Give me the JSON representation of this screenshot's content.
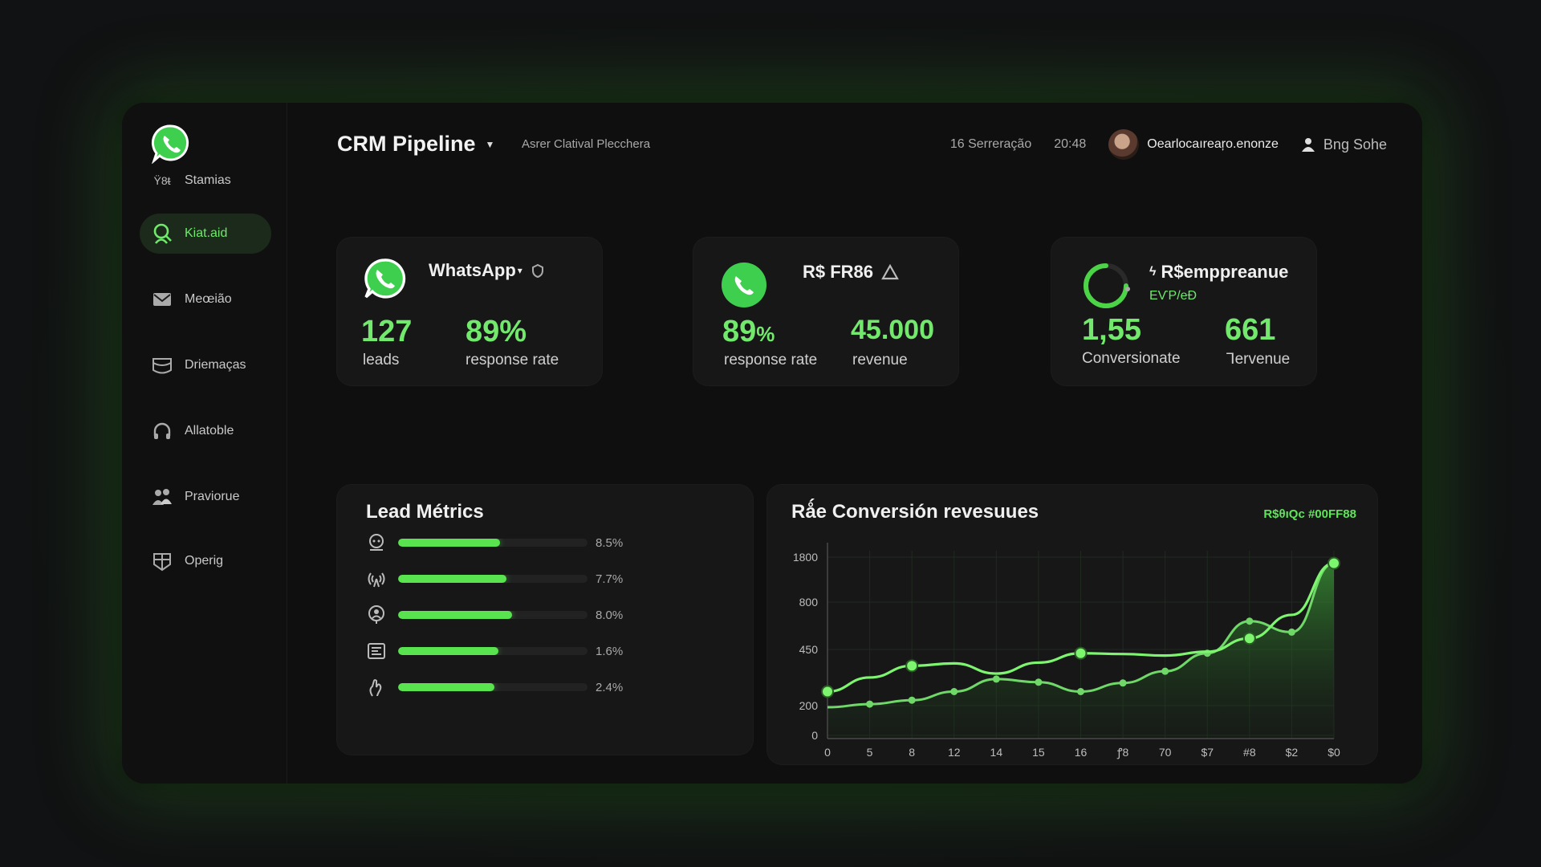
{
  "colors": {
    "accent": "#5fe45a",
    "background": "#0f0f10",
    "card": "#171718"
  },
  "header": {
    "title": "CRM Pipeline",
    "subtitle": "Asrer Clatival Plecchera",
    "date": "16 Serreração",
    "time": "20:48",
    "user_email": "Oearlocaıreaŗo.enonze",
    "profile_label": "Bng Sohe"
  },
  "sidebar": {
    "items": [
      {
        "label": "Stamias",
        "icon": "ytc-text-icon"
      },
      {
        "label": "Kiat.aid",
        "icon": "search-user-icon",
        "active": true
      },
      {
        "label": "Meœião",
        "icon": "mail-icon"
      },
      {
        "label": "Driemaças",
        "icon": "tray-icon"
      },
      {
        "label": "Allatoble",
        "icon": "headset-icon"
      },
      {
        "label": "Praviorue",
        "icon": "group-icon"
      },
      {
        "label": "Operig",
        "icon": "grid-badge-icon"
      }
    ],
    "item0_prefix": "Ϋ8ᵵ"
  },
  "kpis": [
    {
      "title": "WhatsApp",
      "title_suffix": "▾",
      "metrics": [
        {
          "value": "127",
          "label": "leads"
        },
        {
          "value": "89%",
          "label": "response rate"
        }
      ]
    },
    {
      "title": "R$ FR86",
      "metrics": [
        {
          "value": "89",
          "unit": "%",
          "label": "response rate"
        },
        {
          "value": "45.000",
          "label": "revenue"
        }
      ]
    },
    {
      "title": "R$emppreanue",
      "title_prefix": "ϟ",
      "subtitle": "EѴP/eÐ",
      "metrics": [
        {
          "value": "1,55",
          "label": "Conversionate"
        },
        {
          "value": "661",
          "label": "Ꞁervenue"
        }
      ]
    }
  ],
  "lead_metrics": {
    "title": "Lead Métrics",
    "rows": [
      {
        "icon": "chat-bot-icon",
        "value": "8.5%",
        "fill": 0.54
      },
      {
        "icon": "broadcast-icon",
        "value": "7.7%",
        "fill": 0.57
      },
      {
        "icon": "person-pin-icon",
        "value": "8.0%",
        "fill": 0.6
      },
      {
        "icon": "list-check-icon",
        "value": "1.6%",
        "fill": 0.53
      },
      {
        "icon": "hand-icon",
        "value": "2.4%",
        "fill": 0.51
      }
    ]
  },
  "chart_data": {
    "type": "line",
    "title": "Rǻe Conversión revesuues",
    "legend_label": "R$θıQc #00FF88",
    "legend_position": "top-right",
    "grid": true,
    "y_ticks": [
      "1800",
      "800",
      "450",
      "200",
      "0"
    ],
    "x": [
      "0",
      "5",
      "8",
      "12",
      "14",
      "15",
      "16",
      "ꝭ8",
      "70",
      "$7",
      "#8",
      "$2",
      "$0"
    ],
    "series": [
      {
        "values": [
          300,
          390,
          465,
          480,
          415,
          485,
          545,
          540,
          530,
          555,
          640,
          790,
          1120
        ]
      },
      {
        "values": [
          200,
          220,
          245,
          300,
          380,
          360,
          300,
          355,
          430,
          545,
          750,
          680,
          1120
        ],
        "filled": true
      }
    ]
  }
}
